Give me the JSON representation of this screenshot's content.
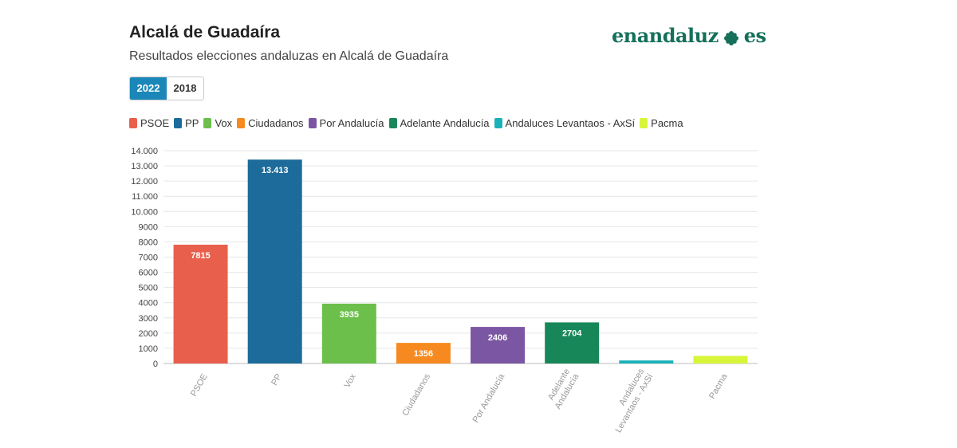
{
  "header": {
    "title": "Alcalá de Guadaíra",
    "subtitle": "Resultados elecciones andaluzas en Alcalá de Guadaíra",
    "logo_text_1": "enandaluz",
    "logo_text_2": "es",
    "logo_icon": "flower-icon",
    "logo_color": "#15705a"
  },
  "tabs": [
    {
      "label": "2022",
      "active": true
    },
    {
      "label": "2018",
      "active": false
    }
  ],
  "legend": [
    {
      "label": "PSOE",
      "color": "#e8604c"
    },
    {
      "label": "PP",
      "color": "#1c6b9a"
    },
    {
      "label": "Vox",
      "color": "#6cbf4b"
    },
    {
      "label": "Ciudadanos",
      "color": "#f6891f"
    },
    {
      "label": "Por Andalucía",
      "color": "#7a56a3"
    },
    {
      "label": "Adelante Andalucía",
      "color": "#17875a"
    },
    {
      "label": "Andaluces Levantaos - AxSí",
      "color": "#1ab1b8"
    },
    {
      "label": "Pacma",
      "color": "#d9f53a"
    }
  ],
  "chart_data": {
    "type": "bar",
    "categories": [
      "PSOE",
      "PP",
      "Vox",
      "Ciudadanos",
      "Por Andalucía",
      "Adelante Andalucía",
      "Andaluces Levantaos - AxSí",
      "Pacma"
    ],
    "category_lines": [
      [
        "PSOE"
      ],
      [
        "PP"
      ],
      [
        "Vox"
      ],
      [
        "Ciudadanos"
      ],
      [
        "Por Andalucía"
      ],
      [
        "Adelante",
        "Andalucía"
      ],
      [
        "Andaluces",
        "Levantaos - AxSí"
      ],
      [
        "Pacma"
      ]
    ],
    "values": [
      7815,
      13413,
      3935,
      1356,
      2406,
      2704,
      200,
      500
    ],
    "data_labels": [
      "7815",
      "13.413",
      "3935",
      "1356",
      "2406",
      "2704",
      "",
      ""
    ],
    "colors": [
      "#e8604c",
      "#1c6b9a",
      "#6cbf4b",
      "#f6891f",
      "#7a56a3",
      "#17875a",
      "#1ab1b8",
      "#d9f53a"
    ],
    "ylim": [
      0,
      14000
    ],
    "yticks": [
      0,
      1000,
      2000,
      3000,
      4000,
      5000,
      6000,
      7000,
      8000,
      9000,
      10000,
      11000,
      12000,
      13000,
      14000
    ],
    "ytick_labels": [
      "0",
      "1000",
      "2000",
      "3000",
      "4000",
      "5000",
      "6000",
      "7000",
      "8000",
      "9000",
      "10.000",
      "11.000",
      "12.000",
      "13.000",
      "14.000"
    ],
    "grid": true,
    "legend_position": "top-left"
  }
}
